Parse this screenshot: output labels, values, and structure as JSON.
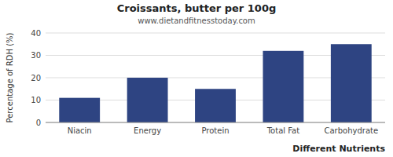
{
  "chart_data": {
    "type": "bar",
    "title": "Croissants, butter per 100g",
    "subtitle": "www.dietandfitnesstoday.com",
    "xlabel": "Different Nutrients",
    "ylabel": "Percentage of RDH (%)",
    "categories": [
      "Niacin",
      "Energy",
      "Protein",
      "Total Fat",
      "Carbohydrate"
    ],
    "values": [
      11,
      20,
      15,
      32,
      35
    ],
    "color": "#2e4482",
    "ylim": [
      0,
      40
    ],
    "yticks": [
      0,
      10,
      20,
      30,
      40
    ],
    "grid": true
  }
}
